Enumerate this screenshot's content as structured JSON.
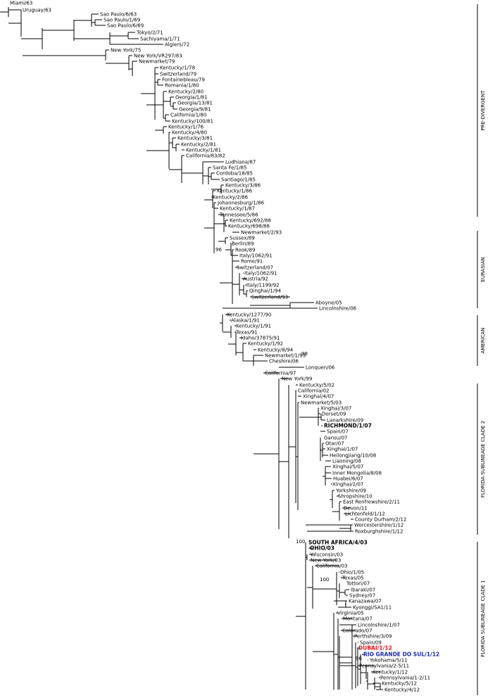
{
  "leaves": [
    {
      "label": "Miami/63"
    },
    {
      "label": "Uruguay/63"
    },
    {
      "label": "Sao Paulo/6/63"
    },
    {
      "label": "Sao Paulo/1/69"
    },
    {
      "label": "Sao Paulo/6/69"
    },
    {
      "label": "Tokyo/2/71"
    },
    {
      "label": "Sachiyama/1/71"
    },
    {
      "label": "Algiers/72"
    },
    {
      "label": "New York/75"
    },
    {
      "label": "New York/VR297/83"
    },
    {
      "label": "Newmarket/79"
    },
    {
      "label": "Kentucky/1/78"
    },
    {
      "label": "Switzerland/79"
    },
    {
      "label": "Fontainebleau/79"
    },
    {
      "label": "Romania/1/80"
    },
    {
      "label": "Kentucky/2/80"
    },
    {
      "label": "Georgia/1/81"
    },
    {
      "label": "Georgia/13/81"
    },
    {
      "label": "Georgia/9/81"
    },
    {
      "label": "California/1/80"
    },
    {
      "label": "Kentucky/100/81"
    },
    {
      "label": "Kentucky/1/76"
    },
    {
      "label": "Kentucky/4/80"
    },
    {
      "label": "Kentucky/3/81"
    },
    {
      "label": "Kentucky/2/81"
    },
    {
      "label": "Kentucky/1/81"
    },
    {
      "label": "California/83/82"
    },
    {
      "label": "Ludhiana/87"
    },
    {
      "label": "Santa Fe/1/85"
    },
    {
      "label": "Cordoba/18/85"
    },
    {
      "label": "Santiago/1/85"
    },
    {
      "label": "Kentucky/3/86"
    },
    {
      "label": "Kentucky/1/86"
    },
    {
      "label": "Kentucky/2/86"
    },
    {
      "label": "Johannesburg/1/86"
    },
    {
      "label": "Kentucky/1/87"
    },
    {
      "label": "Tennessee/5/86"
    },
    {
      "label": "Kentucky/692/88"
    },
    {
      "label": "Kentucky/698/88"
    },
    {
      "label": "Newmarket/2/93"
    },
    {
      "label": "Sussex/89"
    },
    {
      "label": "Berlin/89"
    },
    {
      "label": "Rook/89"
    },
    {
      "label": "Italy/1062/91"
    },
    {
      "label": "Rome/91"
    },
    {
      "label": "Switzerland/07"
    },
    {
      "label": "Italy/1062/91"
    },
    {
      "label": "Austria/92"
    },
    {
      "label": "Italy/1199/92"
    },
    {
      "label": "Qinghai/1/94"
    },
    {
      "label": "Switzerland/93"
    },
    {
      "label": "Aboyne/05"
    },
    {
      "label": "Lincolnshire/06"
    },
    {
      "label": "Kentucky/1277/90"
    },
    {
      "label": "Alaska/1/91"
    },
    {
      "label": "Kentucky/1/91"
    },
    {
      "label": "Texas/91"
    },
    {
      "label": "Idaho/37875/91"
    },
    {
      "label": "Kentucky/1/92"
    },
    {
      "label": "Kentucky/8/94"
    },
    {
      "label": "Newmarket/1/93"
    },
    {
      "label": "Cheshire/06"
    },
    {
      "label": "Lonquen/06"
    },
    {
      "label": "California/97"
    },
    {
      "label": "New York/99"
    },
    {
      "label": "Kentucky/5/02"
    },
    {
      "label": "California/02"
    },
    {
      "label": "Xinghai/4/07"
    },
    {
      "label": "Newmarket/5/03"
    },
    {
      "label": "Xinghai/3/07"
    },
    {
      "label": "Dorset/09"
    },
    {
      "label": "Lanarkshire/09"
    },
    {
      "label": "RICHMOND/1/07",
      "style": "bold"
    },
    {
      "label": "Spain/07"
    },
    {
      "label": "Gansu/07"
    },
    {
      "label": "Otar/07"
    },
    {
      "label": "Xinghai/1/07"
    },
    {
      "label": "Heilongjiang/10/08"
    },
    {
      "label": "Liaoning/08"
    },
    {
      "label": "Xinghai/5/07"
    },
    {
      "label": "Inner Mongolia/8/08"
    },
    {
      "label": "Huabei/6/07"
    },
    {
      "label": "Xinghai/2/07"
    },
    {
      "label": "Yorkshire/09"
    },
    {
      "label": "Shropshire/10"
    },
    {
      "label": "East Renfrewshire/2/11"
    },
    {
      "label": "Devon/11"
    },
    {
      "label": "Lichtenfeld/1/12"
    },
    {
      "label": "County Durham/2/12"
    },
    {
      "label": "Worcestershire/1/12"
    },
    {
      "label": "Roxburghshire/1/12"
    },
    {
      "label": "SOUTH AFRICA/4/03",
      "style": "bold"
    },
    {
      "label": "OHIO/03",
      "style": "bold"
    },
    {
      "label": "Wisconsin/03"
    },
    {
      "label": "New York/03"
    },
    {
      "label": "California/03"
    },
    {
      "label": "Ohio/1/05"
    },
    {
      "label": "Texas/05"
    },
    {
      "label": "Tottori/07"
    },
    {
      "label": "Ibaraki/07"
    },
    {
      "label": "Sydney/07"
    },
    {
      "label": "Kanazawa/07"
    },
    {
      "label": "Kyonggi/SA1/11"
    },
    {
      "label": "Virginia/05"
    },
    {
      "label": "Montana/07"
    },
    {
      "label": "Lincolnshire/1/07"
    },
    {
      "label": "Colorado/07"
    },
    {
      "label": "Perthshire/3/09"
    },
    {
      "label": "Spain/09"
    },
    {
      "label": "DUBAI/1/12",
      "style": "red"
    },
    {
      "label": "RIO GRANDE DO SUL/1/12",
      "style": "blue"
    },
    {
      "label": "Yokohama/5/11"
    },
    {
      "label": "Pennsylvania/2-5/11"
    },
    {
      "label": "Kentucky/1/12"
    },
    {
      "label": "Pennsylvania/1-2/11"
    },
    {
      "label": "Kentucky/5/12"
    },
    {
      "label": "Kentucky/4/12"
    },
    {
      "label": "Kentucky/2/12"
    }
  ],
  "bootstrap": [
    {
      "label": "96",
      "near": "Sussex/89"
    },
    {
      "label": "98",
      "near": "Kentucky/5/02"
    },
    {
      "label": "100",
      "near": "SOUTH AFRICA/4/03"
    },
    {
      "label": "100",
      "near": "Ibaraki/07"
    },
    {
      "label": "96",
      "near": "Yokohama/5/11"
    }
  ],
  "clades": [
    {
      "label": "PRE-DIVERGENT"
    },
    {
      "label": "EURASIAN"
    },
    {
      "label": "AMERICAN"
    },
    {
      "label": "FLORIDA SUBLINEAGE CLADE 2"
    },
    {
      "label": "FLORIDA SUBLINEAGE CLADE 1"
    }
  ]
}
